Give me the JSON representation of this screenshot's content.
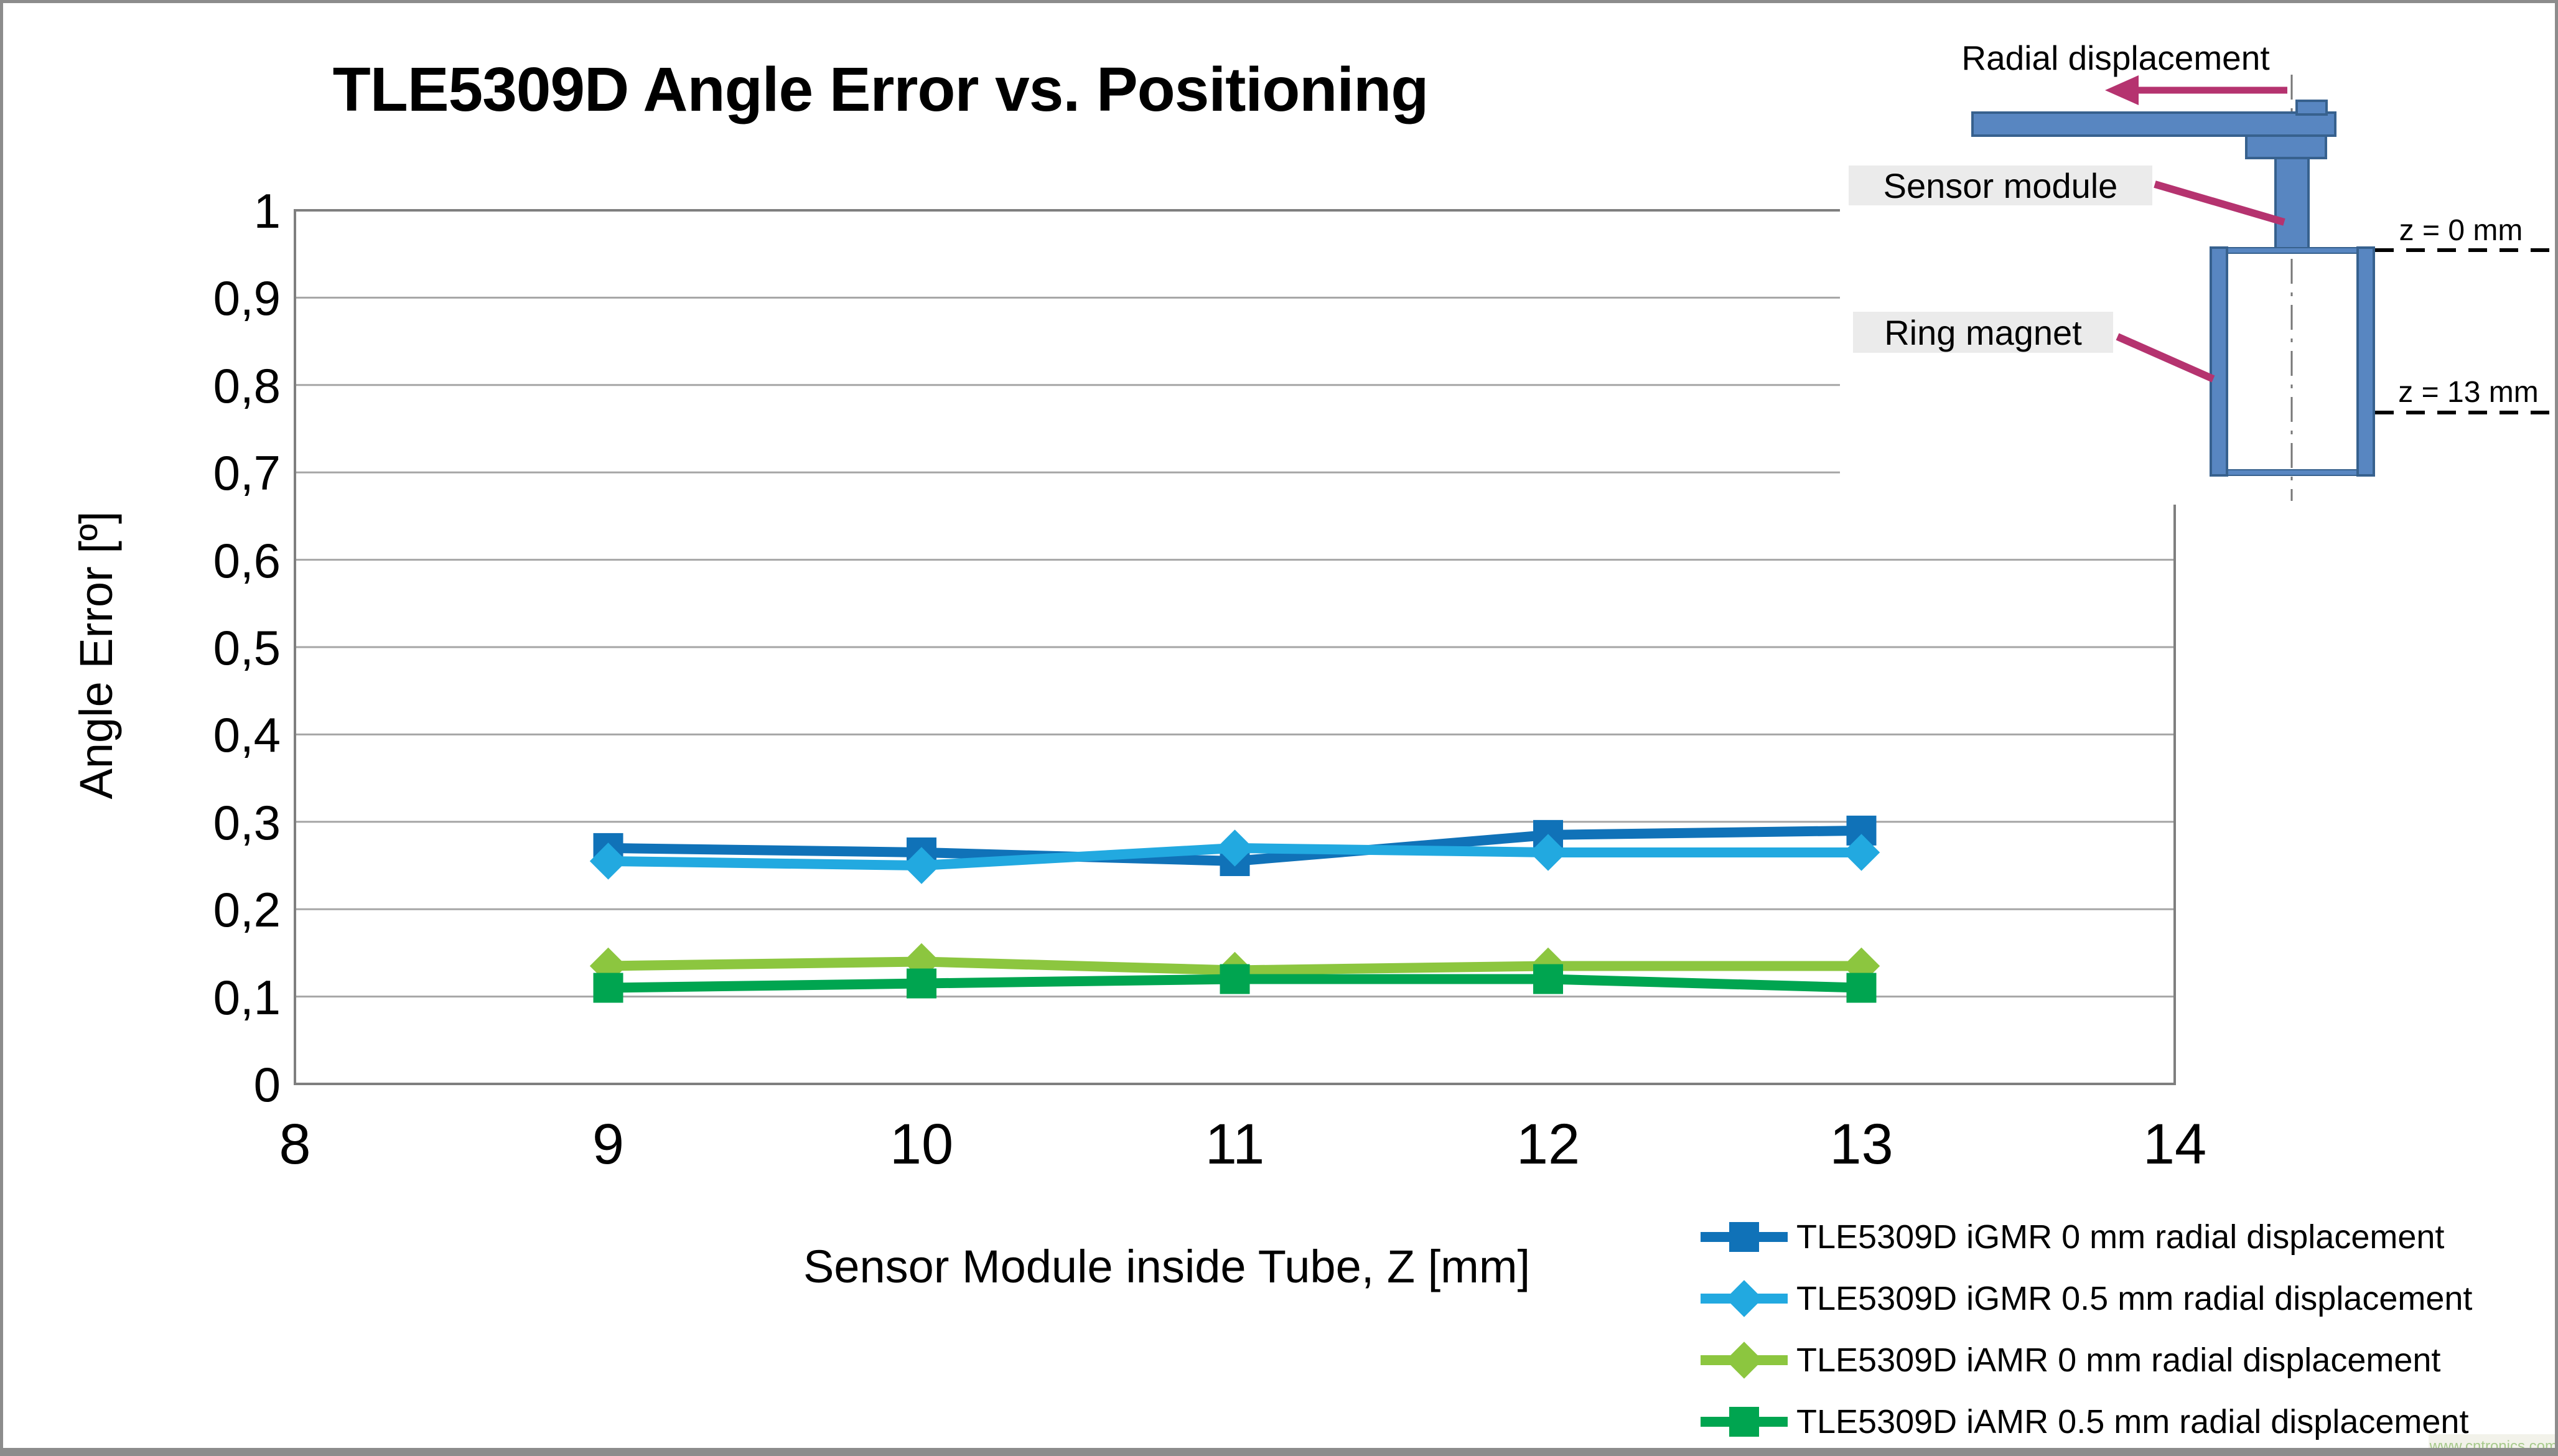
{
  "title": "TLE5309D Angle Error vs. Positioning",
  "axes": {
    "x_title": "Sensor Module inside Tube, Z [mm]",
    "y_title": "Angle Error [º]",
    "x_ticks": [
      "8",
      "9",
      "10",
      "11",
      "12",
      "13",
      "14"
    ],
    "y_ticks": [
      "1",
      "0,9",
      "0,8",
      "0,7",
      "0,6",
      "0,5",
      "0,4",
      "0,3",
      "0,2",
      "0,1",
      "0"
    ]
  },
  "chart_data": {
    "type": "line",
    "title": "TLE5309D Angle Error vs. Positioning",
    "xlabel": "Sensor Module inside Tube, Z [mm]",
    "ylabel": "Angle Error [º]",
    "x": [
      9,
      10,
      11,
      12,
      13
    ],
    "xlim": [
      8,
      14
    ],
    "ylim": [
      0,
      1
    ],
    "y_tick_step": 0.1,
    "grid": "horizontal",
    "legend_position": "bottom-right",
    "series": [
      {
        "name": "TLE5309D iGMR 0 mm radial displacement",
        "color": "#1072b8",
        "marker": "square",
        "values": [
          0.27,
          0.265,
          0.255,
          0.285,
          0.29
        ]
      },
      {
        "name": "TLE5309D iGMR 0.5 mm radial displacement",
        "color": "#22a9e0",
        "marker": "diamond",
        "values": [
          0.255,
          0.25,
          0.27,
          0.265,
          0.265
        ]
      },
      {
        "name": "TLE5309D iAMR 0 mm radial displacement",
        "color": "#8cc63f",
        "marker": "diamond",
        "values": [
          0.135,
          0.14,
          0.13,
          0.135,
          0.135
        ]
      },
      {
        "name": "TLE5309D iAMR 0.5 mm radial displacement",
        "color": "#00a550",
        "marker": "square",
        "values": [
          0.11,
          0.115,
          0.12,
          0.12,
          0.11
        ]
      }
    ]
  },
  "inset": {
    "radial_label": "Radial displacement",
    "sensor_label": "Sensor module",
    "ring_label": "Ring magnet",
    "z0_label": "z = 0 mm",
    "z13_label": "z = 13 mm"
  },
  "watermark": "www.cntronics.com",
  "colors": {
    "gridline": "#a6a6a6",
    "plot_border": "#7f7f7f",
    "frame": "#8c8c8c",
    "inset_fill": "#5886c1",
    "inset_stroke": "#37618e",
    "callout_arrow": "#b5336f",
    "label_bg": "#ebebeb",
    "watermark_text": "#a6c98b"
  }
}
